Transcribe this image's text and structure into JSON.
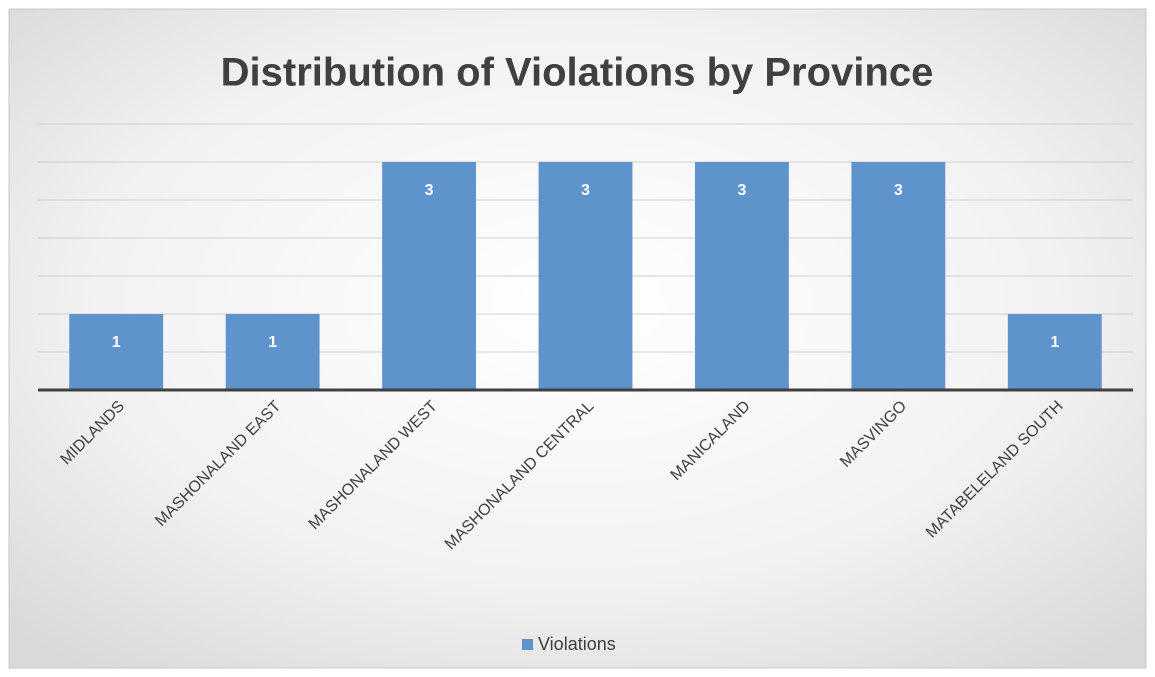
{
  "chart_data": {
    "type": "bar",
    "title": "Distribution of Violations by Province",
    "categories": [
      "MIDLANDS",
      "MASHONALAND EAST",
      "MASHONALAND WEST",
      "MASHONALAND CENTRAL",
      "MANICALAND",
      "MASVINGO",
      "MATABELELAND SOUTH"
    ],
    "series": [
      {
        "name": "Violations",
        "color": "#5f93cc",
        "values": [
          1,
          1,
          3,
          3,
          3,
          3,
          1
        ]
      }
    ],
    "ylim": [
      0,
      3.5
    ],
    "yticks": [
      0,
      0.5,
      1,
      1.5,
      2,
      2.5,
      3,
      3.5
    ],
    "grid": true,
    "legend": "bottom"
  }
}
